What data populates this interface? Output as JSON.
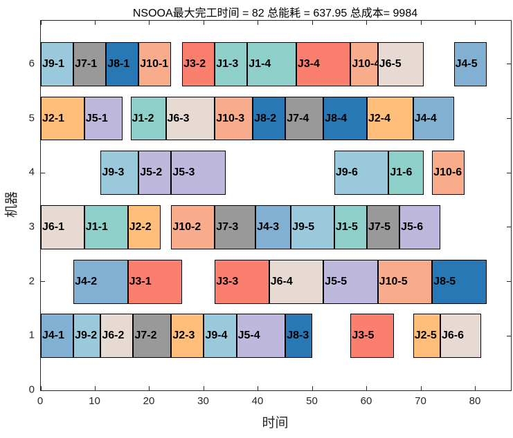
{
  "title": "NSOOA最大完工时间 = 82 总能耗 = 637.95 总成本= 9984",
  "chart_data": {
    "type": "bar",
    "subtype": "gantt-schedule",
    "title": "NSOOA最大完工时间 = 82 总能耗 = 637.95 总成本= 9984",
    "xlabel": "时间",
    "ylabel": "机器",
    "xlim": [
      0,
      86.5
    ],
    "ylim": [
      0,
      6.8
    ],
    "xticks": [
      0,
      10,
      20,
      30,
      40,
      50,
      60,
      70,
      80
    ],
    "yticks": [
      0,
      1,
      2,
      3,
      4,
      5,
      6
    ],
    "grid": false,
    "legend": "none",
    "bar_height_units": 0.81,
    "stats": {
      "algorithm": "NSOOA",
      "makespan": 82,
      "total_energy": 637.95,
      "total_cost": 9984
    },
    "job_colors": {
      "J1": "#8ECFC9",
      "J2": "#FFBE7A",
      "J3": "#FA7F6F",
      "J4": "#82B0D2",
      "J5": "#BEB8DC",
      "J6": "#E7DAD2",
      "J7": "#999999",
      "J8": "#2878B5",
      "J9": "#9AC9DB",
      "J10": "#F8AC8C"
    },
    "machines": [
      {
        "machine": 1,
        "blocks": [
          {
            "label": "J4-1",
            "job": "J4",
            "start": 0,
            "end": 6
          },
          {
            "label": "J9-2",
            "job": "J9",
            "start": 6,
            "end": 11
          },
          {
            "label": "J6-2",
            "job": "J6",
            "start": 11,
            "end": 17
          },
          {
            "label": "J7-2",
            "job": "J7",
            "start": 17,
            "end": 24
          },
          {
            "label": "J2-3",
            "job": "J2",
            "start": 24,
            "end": 30
          },
          {
            "label": "J9-4",
            "job": "J9",
            "start": 30,
            "end": 36
          },
          {
            "label": "J5-4",
            "job": "J5",
            "start": 36,
            "end": 45
          },
          {
            "label": "J8-3",
            "job": "J8",
            "start": 45,
            "end": 50
          },
          {
            "label": "J3-5",
            "job": "J3",
            "start": 57,
            "end": 65
          },
          {
            "label": "J2-5",
            "job": "J2",
            "start": 68.5,
            "end": 73.5
          },
          {
            "label": "J6-6",
            "job": "J6",
            "start": 73.5,
            "end": 81
          }
        ]
      },
      {
        "machine": 2,
        "blocks": [
          {
            "label": "J4-2",
            "job": "J4",
            "start": 6,
            "end": 16
          },
          {
            "label": "J3-1",
            "job": "J3",
            "start": 16,
            "end": 26
          },
          {
            "label": "J3-3",
            "job": "J3",
            "start": 32,
            "end": 42
          },
          {
            "label": "J6-4",
            "job": "J6",
            "start": 42,
            "end": 52
          },
          {
            "label": "J5-5",
            "job": "J5",
            "start": 52,
            "end": 62
          },
          {
            "label": "J10-5",
            "job": "J10",
            "start": 62,
            "end": 72
          },
          {
            "label": "J8-5",
            "job": "J8",
            "start": 72,
            "end": 82
          }
        ]
      },
      {
        "machine": 3,
        "blocks": [
          {
            "label": "J6-1",
            "job": "J6",
            "start": 0,
            "end": 8
          },
          {
            "label": "J1-1",
            "job": "J1",
            "start": 8,
            "end": 16
          },
          {
            "label": "J2-2",
            "job": "J2",
            "start": 16,
            "end": 22
          },
          {
            "label": "J10-2",
            "job": "J10",
            "start": 24,
            "end": 32
          },
          {
            "label": "J7-3",
            "job": "J7",
            "start": 32,
            "end": 39.5
          },
          {
            "label": "J4-3",
            "job": "J4",
            "start": 39.5,
            "end": 46
          },
          {
            "label": "J9-5",
            "job": "J9",
            "start": 46,
            "end": 54
          },
          {
            "label": "J1-5",
            "job": "J1",
            "start": 54,
            "end": 60
          },
          {
            "label": "J7-5",
            "job": "J7",
            "start": 60,
            "end": 66
          },
          {
            "label": "J5-6",
            "job": "J5",
            "start": 66,
            "end": 73.5
          }
        ]
      },
      {
        "machine": 4,
        "blocks": [
          {
            "label": "J9-3",
            "job": "J9",
            "start": 11,
            "end": 18
          },
          {
            "label": "J5-2",
            "job": "J5",
            "start": 18,
            "end": 24
          },
          {
            "label": "J5-3",
            "job": "J5",
            "start": 24,
            "end": 34
          },
          {
            "label": "J9-6",
            "job": "J9",
            "start": 54,
            "end": 64
          },
          {
            "label": "J1-6",
            "job": "J1",
            "start": 64,
            "end": 70.5
          },
          {
            "label": "J10-6",
            "job": "J10",
            "start": 72,
            "end": 78
          }
        ]
      },
      {
        "machine": 5,
        "blocks": [
          {
            "label": "J2-1",
            "job": "J2",
            "start": 0,
            "end": 8
          },
          {
            "label": "J5-1",
            "job": "J5",
            "start": 8,
            "end": 15
          },
          {
            "label": "J1-2",
            "job": "J1",
            "start": 16.5,
            "end": 23
          },
          {
            "label": "J6-3",
            "job": "J6",
            "start": 23,
            "end": 32
          },
          {
            "label": "J10-3",
            "job": "J10",
            "start": 32,
            "end": 39
          },
          {
            "label": "J8-2",
            "job": "J8",
            "start": 39,
            "end": 45
          },
          {
            "label": "J7-4",
            "job": "J7",
            "start": 45,
            "end": 52
          },
          {
            "label": "J8-4",
            "job": "J8",
            "start": 52,
            "end": 60
          },
          {
            "label": "J2-4",
            "job": "J2",
            "start": 60,
            "end": 68.5
          },
          {
            "label": "J4-4",
            "job": "J4",
            "start": 68.5,
            "end": 76
          }
        ]
      },
      {
        "machine": 6,
        "blocks": [
          {
            "label": "J9-1",
            "job": "J9",
            "start": 0,
            "end": 6
          },
          {
            "label": "J7-1",
            "job": "J7",
            "start": 6,
            "end": 12
          },
          {
            "label": "J8-1",
            "job": "J8",
            "start": 12,
            "end": 18
          },
          {
            "label": "J10-1",
            "job": "J10",
            "start": 18,
            "end": 24
          },
          {
            "label": "J3-2",
            "job": "J3",
            "start": 26,
            "end": 32
          },
          {
            "label": "J1-3",
            "job": "J1",
            "start": 32,
            "end": 38
          },
          {
            "label": "J1-4",
            "job": "J1",
            "start": 38,
            "end": 47
          },
          {
            "label": "J3-4",
            "job": "J3",
            "start": 47,
            "end": 57
          },
          {
            "label": "J10-4",
            "job": "J10",
            "start": 57,
            "end": 62
          },
          {
            "label": "J6-5",
            "job": "J6",
            "start": 62,
            "end": 70.5
          },
          {
            "label": "J4-5",
            "job": "J4",
            "start": 76,
            "end": 82
          }
        ]
      }
    ]
  }
}
